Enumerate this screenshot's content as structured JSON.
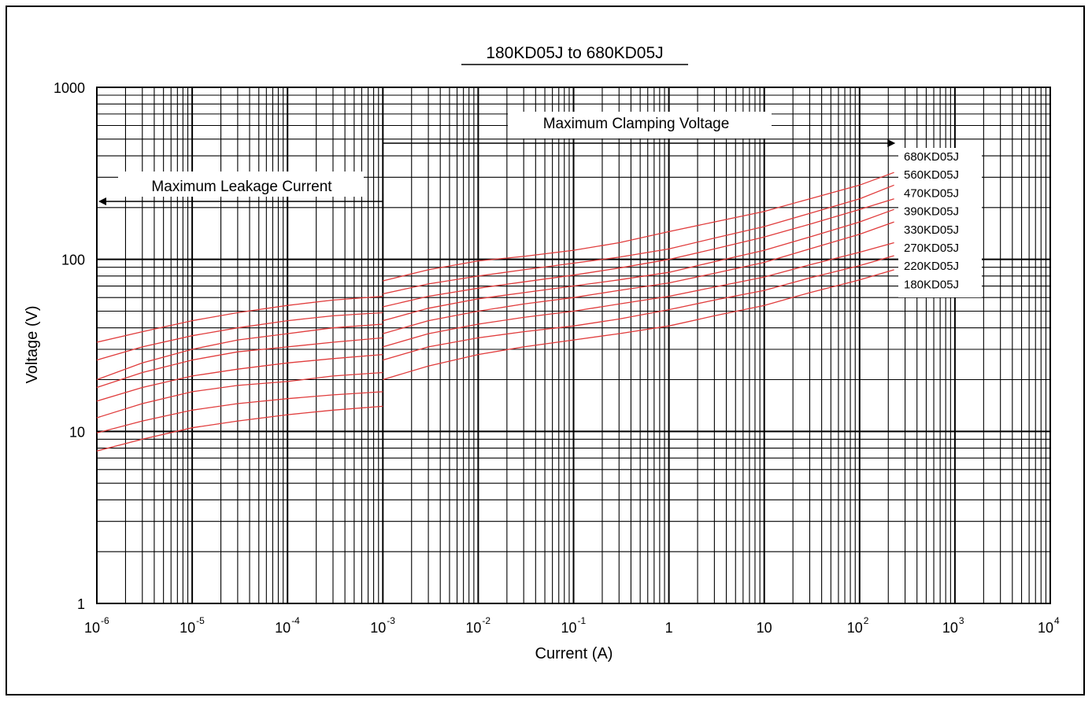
{
  "chart_data": {
    "type": "line",
    "title": "180KD05J to 680KD05J",
    "xlabel": "Current (A)",
    "ylabel": "Voltage (V)",
    "x_scale": "log",
    "y_scale": "log",
    "xlim": [
      1e-06,
      10000
    ],
    "ylim": [
      1,
      1000
    ],
    "grid": true,
    "x_ticks": [
      {
        "base": "10",
        "exp": "-6"
      },
      {
        "base": "10",
        "exp": "-5"
      },
      {
        "base": "10",
        "exp": "-4"
      },
      {
        "base": "10",
        "exp": "-3"
      },
      {
        "base": "10",
        "exp": "-2"
      },
      {
        "base": "10",
        "exp": "-1"
      },
      {
        "base": "1",
        "exp": ""
      },
      {
        "base": "10",
        "exp": ""
      },
      {
        "base": "10",
        "exp": "2"
      },
      {
        "base": "10",
        "exp": "3"
      },
      {
        "base": "10",
        "exp": "4"
      }
    ],
    "y_ticks": [
      "1000",
      "100",
      "10",
      "1"
    ],
    "annotations": [
      {
        "text": "Maximum Leakage Current",
        "x_range": [
          1e-06,
          0.001
        ],
        "arrow": "left"
      },
      {
        "text": "Maximum Clamping Voltage",
        "x_range": [
          0.001,
          200
        ],
        "arrow": "right"
      }
    ],
    "series_color": "#e03c3c",
    "series": [
      {
        "name": "680KD05J",
        "leakage": {
          "x": [
            1e-06,
            3e-06,
            1e-05,
            3e-05,
            0.0001,
            0.0003,
            0.001
          ],
          "y": [
            33,
            38,
            44,
            49,
            54,
            58,
            61
          ]
        },
        "clamping": {
          "x": [
            0.001,
            0.003,
            0.01,
            0.03,
            0.1,
            0.3,
            1,
            3,
            10,
            30,
            100,
            230
          ],
          "y": [
            75,
            87,
            98,
            104,
            113,
            125,
            145,
            165,
            190,
            225,
            270,
            320
          ]
        }
      },
      {
        "name": "560KD05J",
        "leakage": {
          "x": [
            1e-06,
            3e-06,
            1e-05,
            3e-05,
            0.0001,
            0.0003,
            0.001
          ],
          "y": [
            26,
            31,
            36,
            40,
            44,
            47,
            49
          ]
        },
        "clamping": {
          "x": [
            0.001,
            0.003,
            0.01,
            0.03,
            0.1,
            0.3,
            1,
            3,
            10,
            30,
            100,
            230
          ],
          "y": [
            63,
            72,
            80,
            87,
            95,
            103,
            115,
            133,
            155,
            185,
            225,
            270
          ]
        }
      },
      {
        "name": "470KD05J",
        "leakage": {
          "x": [
            1e-06,
            3e-06,
            1e-05,
            3e-05,
            0.0001,
            0.0003,
            0.001
          ],
          "y": [
            20,
            25,
            30,
            34,
            37,
            40,
            42
          ]
        },
        "clamping": {
          "x": [
            0.001,
            0.003,
            0.01,
            0.03,
            0.1,
            0.3,
            1,
            3,
            10,
            30,
            100,
            230
          ],
          "y": [
            53,
            61,
            68,
            74,
            81,
            89,
            100,
            115,
            135,
            160,
            195,
            225
          ]
        }
      },
      {
        "name": "390KD05J",
        "leakage": {
          "x": [
            1e-06,
            3e-06,
            1e-05,
            3e-05,
            0.0001,
            0.0003,
            0.001
          ],
          "y": [
            18,
            22,
            26,
            29,
            31,
            33,
            35
          ]
        },
        "clamping": {
          "x": [
            0.001,
            0.003,
            0.01,
            0.03,
            0.1,
            0.3,
            1,
            3,
            10,
            30,
            100,
            230
          ],
          "y": [
            44,
            52,
            59,
            64,
            70,
            76,
            84,
            97,
            113,
            135,
            165,
            195
          ]
        }
      },
      {
        "name": "330KD05J",
        "leakage": {
          "x": [
            1e-06,
            3e-06,
            1e-05,
            3e-05,
            0.0001,
            0.0003,
            0.001
          ],
          "y": [
            15,
            18,
            21,
            23,
            25,
            26.5,
            28
          ]
        },
        "clamping": {
          "x": [
            0.001,
            0.003,
            0.01,
            0.03,
            0.1,
            0.3,
            1,
            3,
            10,
            30,
            100,
            230
          ],
          "y": [
            37,
            44,
            50,
            55,
            60,
            66,
            73,
            83,
            96,
            115,
            140,
            165
          ]
        }
      },
      {
        "name": "270KD05J",
        "leakage": {
          "x": [
            1e-06,
            3e-06,
            1e-05,
            3e-05,
            0.0001,
            0.0003,
            0.001
          ],
          "y": [
            12,
            14.5,
            17,
            18.5,
            19.5,
            21,
            22
          ]
        },
        "clamping": {
          "x": [
            0.001,
            0.003,
            0.01,
            0.03,
            0.1,
            0.3,
            1,
            3,
            10,
            30,
            100,
            230
          ],
          "y": [
            31,
            37,
            42,
            46,
            50,
            55,
            61,
            69,
            79,
            93,
            110,
            125
          ]
        }
      },
      {
        "name": "220KD05J",
        "leakage": {
          "x": [
            1e-06,
            3e-06,
            1e-05,
            3e-05,
            0.0001,
            0.0003,
            0.001
          ],
          "y": [
            9.8,
            11.5,
            13.3,
            14.5,
            15.5,
            16.3,
            17
          ]
        },
        "clamping": {
          "x": [
            0.001,
            0.003,
            0.01,
            0.03,
            0.1,
            0.3,
            1,
            3,
            10,
            30,
            100,
            230
          ],
          "y": [
            26,
            31,
            35,
            38,
            41,
            45,
            51,
            58,
            66,
            78,
            92,
            105
          ]
        }
      },
      {
        "name": "180KD05J",
        "leakage": {
          "x": [
            1e-06,
            3e-06,
            1e-05,
            3e-05,
            0.0001,
            0.0003,
            0.001
          ],
          "y": [
            7.7,
            9,
            10.5,
            11.5,
            12.5,
            13.3,
            14
          ]
        },
        "clamping": {
          "x": [
            0.001,
            0.003,
            0.01,
            0.03,
            0.1,
            0.3,
            1,
            3,
            10,
            30,
            100,
            230
          ],
          "y": [
            20,
            24,
            28,
            31,
            34,
            37,
            41,
            47,
            54,
            64,
            76,
            87
          ]
        }
      }
    ]
  }
}
